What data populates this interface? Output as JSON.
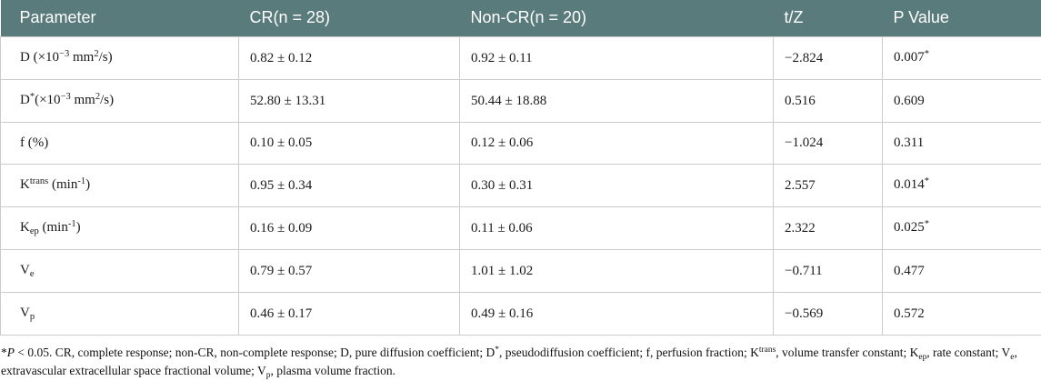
{
  "colors": {
    "header_bg": "#5a7b7c",
    "header_text": "#ffffff",
    "grid_line": "#cccccc"
  },
  "table": {
    "columns": [
      "Parameter",
      "CR(n = 28)",
      "Non-CR(n = 20)",
      "t/Z",
      "P Value"
    ],
    "rows": [
      {
        "param": [
          {
            "t": "D (×10"
          },
          {
            "t": "−3",
            "m": "sup"
          },
          {
            "t": " mm"
          },
          {
            "t": "2",
            "m": "sup"
          },
          {
            "t": "/s)"
          }
        ],
        "cr": "0.82 ± 0.12",
        "noncr": "0.92 ± 0.11",
        "tz": "−2.824",
        "p": [
          {
            "t": "0.007"
          },
          {
            "t": "*",
            "m": "sup"
          }
        ]
      },
      {
        "param": [
          {
            "t": "D"
          },
          {
            "t": "*",
            "m": "sup"
          },
          {
            "t": "(×10"
          },
          {
            "t": "−3",
            "m": "sup"
          },
          {
            "t": " mm"
          },
          {
            "t": "2",
            "m": "sup"
          },
          {
            "t": "/s)"
          }
        ],
        "cr": "52.80 ± 13.31",
        "noncr": "50.44 ± 18.88",
        "tz": "0.516",
        "p": [
          {
            "t": "0.609"
          }
        ]
      },
      {
        "param": [
          {
            "t": "f (%)"
          }
        ],
        "cr": "0.10 ± 0.05",
        "noncr": "0.12 ± 0.06",
        "tz": "−1.024",
        "p": [
          {
            "t": "0.311"
          }
        ]
      },
      {
        "param": [
          {
            "t": "K"
          },
          {
            "t": "trans",
            "m": "sup"
          },
          {
            "t": " (min"
          },
          {
            "t": "-1",
            "m": "sup"
          },
          {
            "t": ")"
          }
        ],
        "cr": "0.95 ± 0.34",
        "noncr": "0.30 ± 0.31",
        "tz": "2.557",
        "p": [
          {
            "t": "0.014"
          },
          {
            "t": "*",
            "m": "sup"
          }
        ]
      },
      {
        "param": [
          {
            "t": "K"
          },
          {
            "t": "ep",
            "m": "sub"
          },
          {
            "t": " (min"
          },
          {
            "t": "-1",
            "m": "sup"
          },
          {
            "t": ")"
          }
        ],
        "cr": "0.16 ± 0.09",
        "noncr": "0.11 ± 0.06",
        "tz": "2.322",
        "p": [
          {
            "t": "0.025"
          },
          {
            "t": "*",
            "m": "sup"
          }
        ]
      },
      {
        "param": [
          {
            "t": "V"
          },
          {
            "t": "e",
            "m": "sub"
          }
        ],
        "cr": "0.79 ± 0.57",
        "noncr": "1.01 ± 1.02",
        "tz": "−0.711",
        "p": [
          {
            "t": "0.477"
          }
        ]
      },
      {
        "param": [
          {
            "t": "V"
          },
          {
            "t": "p",
            "m": "sub"
          }
        ],
        "cr": "0.46 ± 0.17",
        "noncr": "0.49 ± 0.16",
        "tz": "−0.569",
        "p": [
          {
            "t": "0.572"
          }
        ]
      }
    ]
  },
  "footnote": {
    "segments": [
      {
        "t": "*"
      },
      {
        "t": "P",
        "m": "i"
      },
      {
        "t": " < 0.05. CR, complete response; non-CR, non-complete response; D, pure diffusion coefficient; D"
      },
      {
        "t": "*",
        "m": "sup"
      },
      {
        "t": ", pseudodiffusion coefficient; f, perfusion fraction; K"
      },
      {
        "t": "trans",
        "m": "sup"
      },
      {
        "t": ", volume transfer constant; K"
      },
      {
        "t": "ep",
        "m": "sub"
      },
      {
        "t": ", rate constant; V"
      },
      {
        "t": "e",
        "m": "sub"
      },
      {
        "t": ", extravascular extracellular space fractional volume; V"
      },
      {
        "t": "p",
        "m": "sub"
      },
      {
        "t": ", plasma volume fraction."
      }
    ]
  }
}
